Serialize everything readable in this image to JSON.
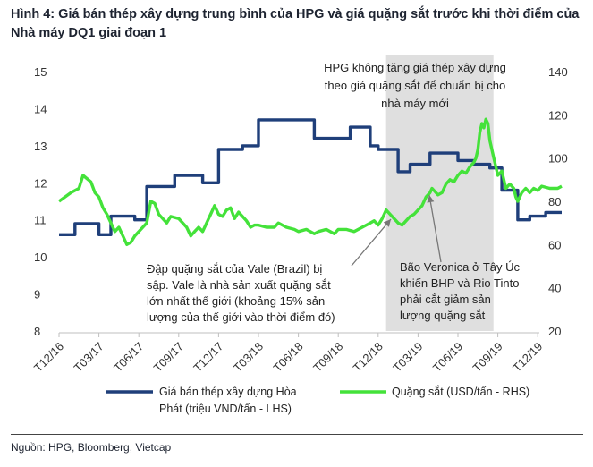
{
  "title_line1": "Hình 4: Giá bán thép xây dựng trung bình của HPG và giá quặng sắt trước khi thời điểm của",
  "title_line2": "Nhà máy DQ1 giai đoạn 1",
  "source": "Nguồn: HPG, Bloomberg, Vietcap",
  "chart_data": {
    "type": "line",
    "x_ticks": [
      "T12/16",
      "T03/17",
      "T06/17",
      "T09/17",
      "T12/17",
      "T03/18",
      "T06/18",
      "T09/18",
      "T12/18",
      "T03/19",
      "T06/19",
      "T09/19",
      "T12/19"
    ],
    "y_left": {
      "min": 8,
      "max": 15,
      "ticks": [
        8,
        9,
        10,
        11,
        12,
        13,
        14,
        15
      ]
    },
    "y_right": {
      "min": 20,
      "max": 140,
      "ticks": [
        20,
        40,
        60,
        80,
        100,
        120,
        140
      ]
    },
    "shaded_region": {
      "from": "T01/19",
      "to": "T08/19",
      "color": "#d9d9d9"
    },
    "series": [
      {
        "name": "Giá bán thép xây dựng Hòa Phát (triệu VND/tấn - LHS)",
        "axis": "left",
        "color": "#1f3f7a",
        "points": [
          [
            0,
            10.6
          ],
          [
            0.4,
            10.6
          ],
          [
            0.4,
            10.9
          ],
          [
            1.0,
            10.9
          ],
          [
            1.0,
            10.6
          ],
          [
            1.3,
            10.6
          ],
          [
            1.3,
            11.1
          ],
          [
            1.9,
            11.1
          ],
          [
            1.9,
            11.0
          ],
          [
            2.2,
            11.0
          ],
          [
            2.2,
            11.9
          ],
          [
            2.9,
            11.9
          ],
          [
            2.9,
            12.2
          ],
          [
            3.6,
            12.2
          ],
          [
            3.6,
            12.0
          ],
          [
            4.0,
            12.0
          ],
          [
            4.0,
            12.9
          ],
          [
            4.6,
            12.9
          ],
          [
            4.6,
            13.0
          ],
          [
            5.0,
            13.0
          ],
          [
            5.0,
            13.7
          ],
          [
            6.4,
            13.7
          ],
          [
            6.4,
            13.2
          ],
          [
            7.3,
            13.2
          ],
          [
            7.3,
            13.5
          ],
          [
            7.8,
            13.5
          ],
          [
            7.8,
            13.0
          ],
          [
            8.0,
            13.0
          ],
          [
            8.0,
            12.9
          ],
          [
            8.5,
            12.9
          ],
          [
            8.5,
            12.3
          ],
          [
            8.8,
            12.3
          ],
          [
            8.8,
            12.5
          ],
          [
            9.3,
            12.5
          ],
          [
            9.3,
            12.8
          ],
          [
            10.0,
            12.8
          ],
          [
            10.0,
            12.6
          ],
          [
            10.4,
            12.6
          ],
          [
            10.4,
            12.5
          ],
          [
            10.8,
            12.5
          ],
          [
            10.8,
            12.4
          ],
          [
            11.1,
            12.4
          ],
          [
            11.1,
            11.8
          ],
          [
            11.5,
            11.8
          ],
          [
            11.5,
            11.0
          ],
          [
            11.8,
            11.0
          ],
          [
            11.8,
            11.1
          ],
          [
            12.2,
            11.1
          ],
          [
            12.2,
            11.2
          ],
          [
            12.6,
            11.2
          ]
        ]
      },
      {
        "name": "Quặng sắt (USD/tấn - RHS)",
        "axis": "right",
        "color": "#44e23a",
        "points": [
          [
            0,
            80
          ],
          [
            0.3,
            84
          ],
          [
            0.5,
            86
          ],
          [
            0.6,
            92
          ],
          [
            0.8,
            89
          ],
          [
            0.9,
            84
          ],
          [
            1.0,
            82
          ],
          [
            1.1,
            77
          ],
          [
            1.2,
            74
          ],
          [
            1.3,
            70
          ],
          [
            1.4,
            66
          ],
          [
            1.5,
            68
          ],
          [
            1.6,
            64
          ],
          [
            1.7,
            60
          ],
          [
            1.8,
            61
          ],
          [
            1.9,
            64
          ],
          [
            2.0,
            66
          ],
          [
            2.2,
            70
          ],
          [
            2.3,
            80
          ],
          [
            2.4,
            79
          ],
          [
            2.5,
            74
          ],
          [
            2.7,
            70
          ],
          [
            2.8,
            73
          ],
          [
            3.0,
            72
          ],
          [
            3.1,
            70
          ],
          [
            3.2,
            68
          ],
          [
            3.3,
            64
          ],
          [
            3.4,
            66
          ],
          [
            3.5,
            68
          ],
          [
            3.6,
            66
          ],
          [
            3.7,
            70
          ],
          [
            3.8,
            74
          ],
          [
            3.9,
            78
          ],
          [
            4.0,
            74
          ],
          [
            4.1,
            73
          ],
          [
            4.2,
            76
          ],
          [
            4.3,
            77
          ],
          [
            4.4,
            72
          ],
          [
            4.5,
            75
          ],
          [
            4.6,
            73
          ],
          [
            4.7,
            71
          ],
          [
            4.8,
            68
          ],
          [
            4.9,
            69
          ],
          [
            5.0,
            69
          ],
          [
            5.2,
            68
          ],
          [
            5.4,
            68
          ],
          [
            5.5,
            70
          ],
          [
            5.7,
            68
          ],
          [
            5.9,
            67
          ],
          [
            6.0,
            66
          ],
          [
            6.2,
            67
          ],
          [
            6.4,
            65
          ],
          [
            6.5,
            66
          ],
          [
            6.7,
            67
          ],
          [
            6.9,
            65
          ],
          [
            7.0,
            67
          ],
          [
            7.2,
            67
          ],
          [
            7.4,
            66
          ],
          [
            7.5,
            67
          ],
          [
            7.6,
            68
          ],
          [
            7.8,
            70
          ],
          [
            7.9,
            71
          ],
          [
            8.0,
            69
          ],
          [
            8.1,
            72
          ],
          [
            8.2,
            76
          ],
          [
            8.3,
            74
          ],
          [
            8.4,
            72
          ],
          [
            8.5,
            70
          ],
          [
            8.6,
            69
          ],
          [
            8.7,
            71
          ],
          [
            8.8,
            73
          ],
          [
            8.9,
            74
          ],
          [
            9.0,
            76
          ],
          [
            9.1,
            78
          ],
          [
            9.2,
            82
          ],
          [
            9.3,
            84
          ],
          [
            9.35,
            86
          ],
          [
            9.4,
            85
          ],
          [
            9.5,
            83
          ],
          [
            9.6,
            84
          ],
          [
            9.7,
            88
          ],
          [
            9.8,
            90
          ],
          [
            9.9,
            89
          ],
          [
            10.0,
            92
          ],
          [
            10.1,
            94
          ],
          [
            10.2,
            93
          ],
          [
            10.3,
            96
          ],
          [
            10.4,
            98
          ],
          [
            10.45,
            100
          ],
          [
            10.5,
            104
          ],
          [
            10.55,
            112
          ],
          [
            10.6,
            116
          ],
          [
            10.65,
            114
          ],
          [
            10.7,
            118
          ],
          [
            10.75,
            116
          ],
          [
            10.8,
            108
          ],
          [
            10.85,
            104
          ],
          [
            10.9,
            100
          ],
          [
            11.0,
            92
          ],
          [
            11.1,
            94
          ],
          [
            11.15,
            90
          ],
          [
            11.2,
            86
          ],
          [
            11.3,
            88
          ],
          [
            11.4,
            86
          ],
          [
            11.45,
            82
          ],
          [
            11.5,
            80
          ],
          [
            11.6,
            84
          ],
          [
            11.7,
            86
          ],
          [
            11.8,
            84
          ],
          [
            11.9,
            86
          ],
          [
            12.0,
            85
          ],
          [
            12.1,
            87
          ],
          [
            12.3,
            86
          ],
          [
            12.5,
            86
          ],
          [
            12.6,
            87
          ]
        ]
      }
    ],
    "annotations": [
      {
        "lines": [
          "HPG không tăng giá thép xây dựng",
          "theo giá quặng sắt để chuẩn bị cho",
          "nhà máy mới"
        ]
      },
      {
        "lines": [
          "Đập quặng sắt của Vale (Brazil) bị",
          "sập. Vale là nhà sản xuất quặng sắt",
          "lớn nhất thế giới (khoảng 15% sản",
          "lượng của thế giới vào thời điểm đó)"
        ]
      },
      {
        "lines": [
          "Bão Veronica ở Tây Úc",
          "khiến BHP và Rio Tinto",
          "phải cắt giảm sản",
          "lượng quặng sắt"
        ]
      }
    ],
    "legend": [
      {
        "lines": [
          "Giá bán thép xây dựng Hòa",
          "Phát (triệu VND/tấn - LHS)"
        ]
      },
      {
        "lines": [
          "Quặng sắt (USD/tấn - RHS)"
        ]
      }
    ]
  }
}
